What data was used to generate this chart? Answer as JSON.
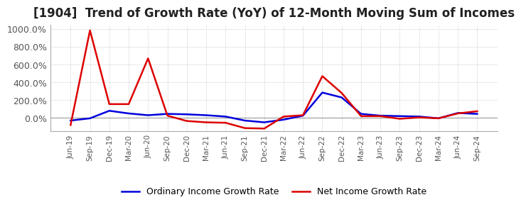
{
  "title": "[1904]  Trend of Growth Rate (YoY) of 12-Month Moving Sum of Incomes",
  "title_fontsize": 12,
  "ylim": [
    -150,
    1050
  ],
  "yticks": [
    0,
    200,
    400,
    600,
    800,
    1000
  ],
  "ytick_labels": [
    "0.0%",
    "200.0%",
    "400.0%",
    "600.0%",
    "800.0%",
    "1000.0%"
  ],
  "background_color": "#ffffff",
  "grid_color": "#bbbbbb",
  "ordinary_color": "#0000dd",
  "net_color": "#dd0000",
  "legend_labels": [
    "Ordinary Income Growth Rate",
    "Net Income Growth Rate"
  ],
  "x_labels": [
    "Jun-19",
    "Sep-19",
    "Dec-19",
    "Mar-20",
    "Jun-20",
    "Sep-20",
    "Dec-20",
    "Mar-21",
    "Jun-21",
    "Sep-21",
    "Dec-21",
    "Mar-22",
    "Jun-22",
    "Sep-22",
    "Dec-22",
    "Mar-23",
    "Jun-23",
    "Sep-23",
    "Dec-23",
    "Mar-24",
    "Jun-24",
    "Sep-24"
  ],
  "ordinary_income_growth": [
    -30,
    -5,
    80,
    50,
    30,
    45,
    40,
    30,
    15,
    -30,
    -50,
    -20,
    25,
    285,
    230,
    45,
    25,
    20,
    15,
    -5,
    55,
    45
  ],
  "net_income_growth": [
    -80,
    985,
    155,
    155,
    670,
    25,
    -35,
    -50,
    -55,
    -115,
    -120,
    15,
    30,
    470,
    280,
    20,
    20,
    -10,
    5,
    -5,
    50,
    75
  ]
}
